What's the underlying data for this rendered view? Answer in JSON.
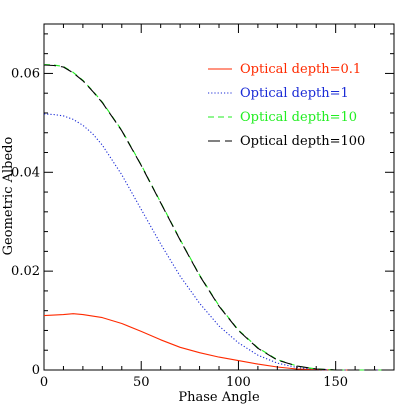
{
  "chart_data": {
    "type": "line",
    "xlabel": "Phase Angle",
    "ylabel": "Geometric Albedo",
    "xlim": [
      0,
      180
    ],
    "ylim": [
      0,
      0.07
    ],
    "x_ticks": [
      "0",
      "50",
      "100",
      "150"
    ],
    "y_ticks": [
      "0",
      "0.02",
      "0.04",
      "0.06"
    ],
    "x_tick_values": [
      0,
      50,
      100,
      150
    ],
    "y_tick_values": [
      0,
      0.02,
      0.04,
      0.06
    ],
    "legend_position": "top-right",
    "grid": false,
    "series": [
      {
        "name": "Optical depth=0.1",
        "color": "#ff2a00",
        "dash": "solid",
        "x": [
          0,
          10,
          15,
          20,
          30,
          40,
          50,
          60,
          70,
          80,
          90,
          100,
          110,
          120,
          130,
          140,
          150,
          160,
          170,
          180
        ],
        "y": [
          0.011,
          0.0112,
          0.0114,
          0.0112,
          0.0106,
          0.0094,
          0.0078,
          0.0061,
          0.0046,
          0.0035,
          0.0026,
          0.0019,
          0.0012,
          0.0006,
          0.0002,
          0.0001,
          0.0,
          0.0,
          0.0,
          0.0
        ]
      },
      {
        "name": "Optical depth=1",
        "color": "#1a2bd6",
        "dash": "dotted",
        "x": [
          0,
          5,
          10,
          15,
          20,
          25,
          30,
          40,
          50,
          60,
          70,
          80,
          90,
          100,
          110,
          120,
          130,
          140,
          150,
          160,
          170,
          180
        ],
        "y": [
          0.0518,
          0.0517,
          0.0514,
          0.0507,
          0.0495,
          0.0478,
          0.0455,
          0.0395,
          0.0325,
          0.0255,
          0.019,
          0.0135,
          0.0089,
          0.0055,
          0.003,
          0.0014,
          0.0005,
          0.0001,
          0.0,
          0.0,
          0.0,
          0.0
        ]
      },
      {
        "name": "Optical depth=10",
        "color": "#22ee22",
        "dash": "dashed",
        "x": [
          0,
          5,
          10,
          15,
          20,
          25,
          30,
          40,
          50,
          60,
          70,
          80,
          90,
          100,
          110,
          120,
          130,
          140,
          150,
          160,
          170,
          180
        ],
        "y": [
          0.0618,
          0.0617,
          0.0614,
          0.0602,
          0.0586,
          0.0565,
          0.0542,
          0.0485,
          0.0415,
          0.0339,
          0.0264,
          0.0192,
          0.013,
          0.0081,
          0.0045,
          0.0021,
          0.0008,
          0.0002,
          0.0,
          0.0,
          0.0,
          0.0
        ]
      },
      {
        "name": "Optical depth=100",
        "color": "#000000",
        "dash": "longdash",
        "x": [
          0,
          5,
          10,
          15,
          20,
          25,
          30,
          40,
          50,
          60,
          70,
          80,
          90,
          100,
          110,
          120,
          130,
          140,
          150,
          160,
          170,
          180
        ],
        "y": [
          0.0617,
          0.0616,
          0.0613,
          0.0601,
          0.0585,
          0.0564,
          0.0541,
          0.0484,
          0.0414,
          0.0338,
          0.0263,
          0.0191,
          0.0129,
          0.008,
          0.0044,
          0.002,
          0.0008,
          0.0002,
          0.0,
          0.0,
          0.0,
          0.0
        ]
      }
    ]
  }
}
